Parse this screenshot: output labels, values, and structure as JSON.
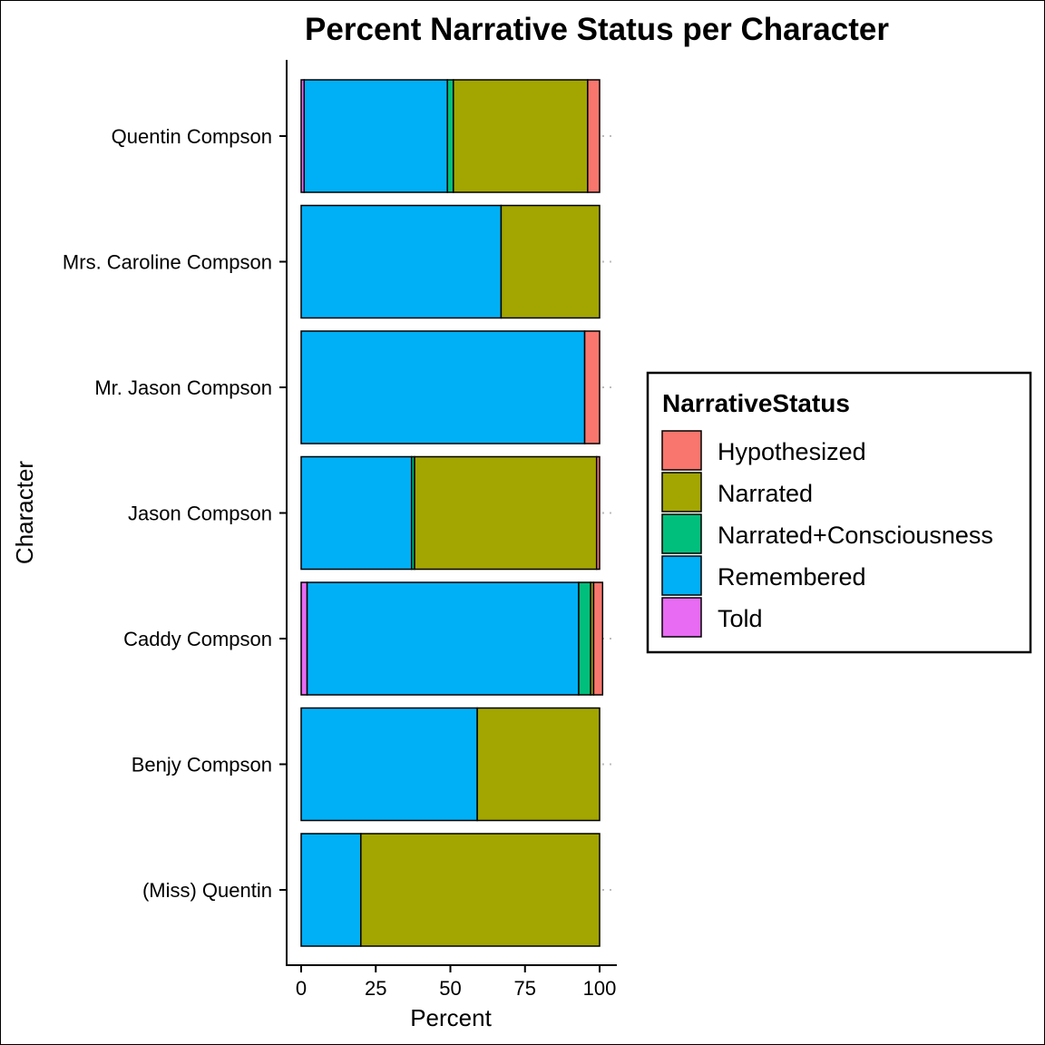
{
  "chart_data": {
    "type": "bar",
    "orientation": "horizontal",
    "stacked": true,
    "title": "Percent Narrative Status per Character",
    "xlabel": "Percent",
    "ylabel": "Character",
    "xlim": [
      0,
      100
    ],
    "xticks": [
      "0",
      "25",
      "50",
      "75",
      "100"
    ],
    "grid": false,
    "legend_position": "right",
    "legend_title": "NarrativeStatus",
    "categories": [
      "(Miss) Quentin",
      "Benjy Compson",
      "Caddy Compson",
      "Jason Compson",
      "Mr. Jason Compson",
      "Mrs. Caroline Compson",
      "Quentin Compson"
    ],
    "series": [
      {
        "name": "Told",
        "color": "#E76BF3",
        "values": [
          0,
          0,
          2,
          0,
          0,
          0,
          1
        ]
      },
      {
        "name": "Remembered",
        "color": "#00B0F6",
        "values": [
          20,
          59,
          91,
          37,
          95,
          67,
          48
        ]
      },
      {
        "name": "Narrated+Consciousness",
        "color": "#00BF7D",
        "values": [
          0,
          0,
          4,
          1,
          0,
          0,
          2
        ]
      },
      {
        "name": "Narrated",
        "color": "#A3A500",
        "values": [
          80,
          41,
          1,
          61,
          0,
          33,
          45
        ]
      },
      {
        "name": "Hypothesized",
        "color": "#F8766D",
        "values": [
          0,
          0,
          3,
          1,
          5,
          0,
          4
        ]
      }
    ],
    "legend_order": [
      "Hypothesized",
      "Narrated",
      "Narrated+Consciousness",
      "Remembered",
      "Told"
    ]
  }
}
